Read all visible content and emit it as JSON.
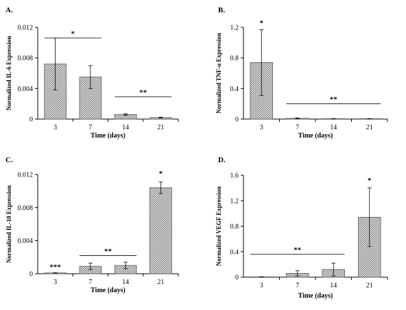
{
  "chart_data": [
    {
      "type": "bar",
      "panel_label": "A.",
      "categories": [
        "3",
        "7",
        "14",
        "21"
      ],
      "values": [
        0.0072,
        0.0055,
        0.0006,
        0.0002
      ],
      "errors": [
        0.0034,
        0.0015,
        0.0001,
        5e-05
      ],
      "xlabel": "Time (days)",
      "ylabel": "Normalized IL-6 Expression",
      "ylim": [
        0,
        0.012
      ],
      "yticks": [
        "0",
        "0.004",
        "0.008",
        "0.012"
      ],
      "grid": false,
      "significance": [
        {
          "label": "*",
          "from": "3",
          "to": "7",
          "y": 0.0106
        },
        {
          "label": "**",
          "from": "14",
          "to": "21",
          "y": 0.0029
        }
      ]
    },
    {
      "type": "bar",
      "panel_label": "B.",
      "categories": [
        "3",
        "7",
        "14",
        "21"
      ],
      "values": [
        0.74,
        0.01,
        0.005,
        0.005
      ],
      "errors": [
        0.43,
        0.005,
        0.002,
        0.002
      ],
      "xlabel": "Time (days)",
      "ylabel": "Normalized TNF-α Expression",
      "ylim": [
        0,
        1.2
      ],
      "yticks": [
        "0",
        "0.4",
        "0.8",
        "1.2"
      ],
      "grid": false,
      "significance": [
        {
          "label": "*",
          "at": "3",
          "y": 1.2
        },
        {
          "label": "**",
          "from": "7",
          "to": "21",
          "y": 0.2
        }
      ]
    },
    {
      "type": "bar",
      "panel_label": "C.",
      "categories": [
        "3",
        "7",
        "14",
        "21"
      ],
      "values": [
        0.0001,
        0.0009,
        0.001,
        0.0104
      ],
      "errors": [
        2e-05,
        0.0004,
        0.0004,
        0.0007
      ],
      "xlabel": "Time (days)",
      "ylabel": "Normalized IL-10 Expression",
      "ylim": [
        0,
        0.012
      ],
      "yticks": [
        "0",
        "0.004",
        "0.008",
        "0.012"
      ],
      "grid": false,
      "significance": [
        {
          "label": "***",
          "at": "3",
          "y": 0.0003
        },
        {
          "label": "**",
          "from": "7",
          "to": "14",
          "y": 0.0022
        },
        {
          "label": "*",
          "at": "21",
          "y": 0.0116
        }
      ]
    },
    {
      "type": "bar",
      "panel_label": "D.",
      "categories": [
        "3",
        "7",
        "14",
        "21"
      ],
      "values": [
        0.005,
        0.06,
        0.12,
        0.94
      ],
      "errors": [
        0.002,
        0.04,
        0.1,
        0.46
      ],
      "xlabel": "Time (days)",
      "ylabel": "Normalized VEGF Expression",
      "ylim": [
        0,
        1.6
      ],
      "yticks": [
        "0",
        "0.4",
        "0.8",
        "1.2",
        "1.6"
      ],
      "grid": false,
      "significance": [
        {
          "label": "**",
          "from": "3",
          "to": "14",
          "y": 0.36
        },
        {
          "label": "*",
          "at": "21",
          "y": 1.45
        }
      ]
    }
  ],
  "colors": {
    "bar_fill": "#c8c8c8",
    "bar_stroke": "#555555",
    "axis": "#000000"
  }
}
